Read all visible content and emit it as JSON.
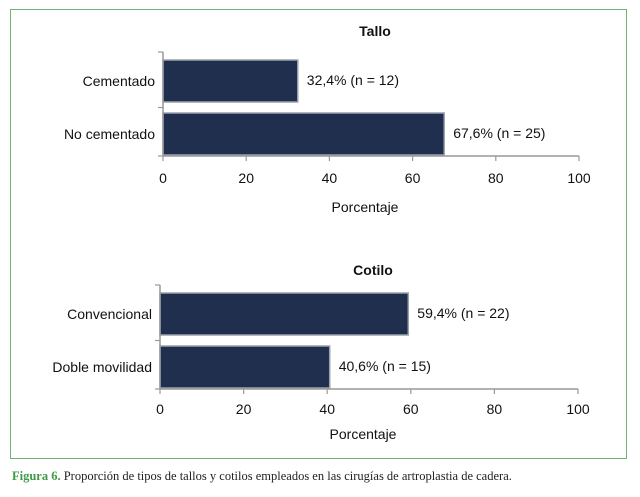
{
  "chart_data": [
    {
      "type": "bar",
      "orientation": "horizontal",
      "title": "Tallo",
      "xlabel": "Porcentaje",
      "xlim": [
        0,
        100
      ],
      "xticks": [
        0,
        20,
        40,
        60,
        80,
        100
      ],
      "categories": [
        "Cementado",
        "No cementado"
      ],
      "values": [
        32.4,
        67.6
      ],
      "data_labels": [
        "32,4% (n = 12)",
        "67,6% (n = 25)"
      ],
      "bar_color": "#1f2f4d"
    },
    {
      "type": "bar",
      "orientation": "horizontal",
      "title": "Cotilo",
      "xlabel": "Porcentaje",
      "xlim": [
        0,
        100
      ],
      "xticks": [
        0,
        20,
        40,
        60,
        80,
        100
      ],
      "categories": [
        "Convencional",
        "Doble movilidad"
      ],
      "values": [
        59.4,
        40.6
      ],
      "data_labels": [
        "59,4% (n = 22)",
        "40,6% (n = 15)"
      ],
      "bar_color": "#1f2f4d"
    }
  ],
  "caption": {
    "label": "Figura 6.",
    "text": "Proporción de tipos de tallos y cotilos empleados en las cirugías de artroplastia de cadera."
  },
  "colors": {
    "frame": "#6fb56f",
    "caption_label": "#3f9a46"
  }
}
